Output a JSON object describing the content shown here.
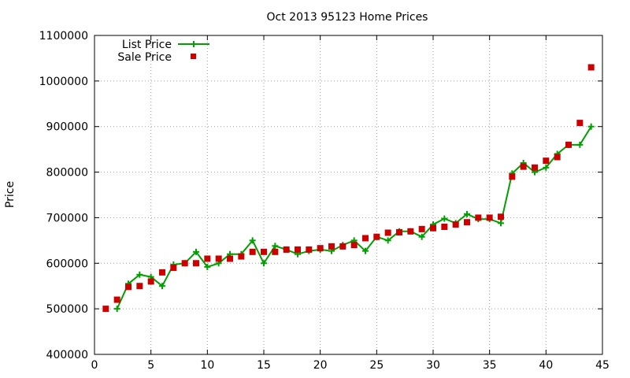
{
  "chart_data": {
    "type": "line",
    "title": "Oct 2013 95123 Home Prices",
    "xlabel": "",
    "ylabel": "Price",
    "xlim": [
      0,
      45
    ],
    "ylim": [
      400000,
      1100000
    ],
    "x_ticks": [
      0,
      5,
      10,
      15,
      20,
      25,
      30,
      35,
      40,
      45
    ],
    "y_ticks": [
      400000,
      500000,
      600000,
      700000,
      800000,
      900000,
      1000000,
      1100000
    ],
    "grid": true,
    "legend_position": "top-left",
    "x": [
      1,
      2,
      3,
      4,
      5,
      6,
      7,
      8,
      9,
      10,
      11,
      12,
      13,
      14,
      15,
      16,
      17,
      18,
      19,
      20,
      21,
      22,
      23,
      24,
      25,
      26,
      27,
      28,
      29,
      30,
      31,
      32,
      33,
      34,
      35,
      36,
      37,
      38,
      39,
      40,
      41,
      42,
      43,
      44
    ],
    "series": [
      {
        "name": "List Price",
        "style": "line with plus markers",
        "color": "#00a000",
        "x": [
          2,
          3,
          4,
          5,
          6,
          7,
          8,
          9,
          10,
          11,
          12,
          13,
          14,
          15,
          16,
          17,
          18,
          19,
          20,
          21,
          22,
          23,
          24,
          25,
          26,
          27,
          28,
          29,
          30,
          31,
          32,
          33,
          34,
          35,
          36,
          37,
          38,
          39,
          40,
          41,
          42,
          43,
          44
        ],
        "values": [
          500000,
          555000,
          575000,
          570000,
          550000,
          597000,
          600000,
          625000,
          592000,
          600000,
          620000,
          620000,
          650000,
          600000,
          638000,
          630000,
          620000,
          627000,
          630000,
          627000,
          640000,
          650000,
          627000,
          658000,
          650000,
          670000,
          670000,
          658000,
          685000,
          698000,
          688000,
          708000,
          697000,
          697000,
          688000,
          797000,
          820000,
          800000,
          810000,
          840000,
          860000,
          860000,
          900000
        ]
      },
      {
        "name": "Sale Price",
        "style": "square markers",
        "color": "#cc0000",
        "x": [
          1,
          2,
          3,
          4,
          5,
          6,
          7,
          8,
          9,
          10,
          11,
          12,
          13,
          14,
          15,
          16,
          17,
          18,
          19,
          20,
          21,
          22,
          23,
          24,
          25,
          26,
          27,
          28,
          29,
          30,
          31,
          32,
          33,
          34,
          35,
          36,
          37,
          38,
          39,
          40,
          41,
          42,
          43,
          44
        ],
        "values": [
          500000,
          520000,
          548000,
          550000,
          560000,
          580000,
          590000,
          600000,
          600000,
          610000,
          610000,
          610000,
          615000,
          625000,
          625000,
          625000,
          630000,
          630000,
          630000,
          633000,
          637000,
          637000,
          640000,
          655000,
          658000,
          667000,
          668000,
          670000,
          675000,
          677000,
          680000,
          685000,
          690000,
          700000,
          700000,
          702000,
          790000,
          812000,
          810000,
          825000,
          833000,
          860000,
          908000,
          1030000
        ]
      }
    ]
  }
}
